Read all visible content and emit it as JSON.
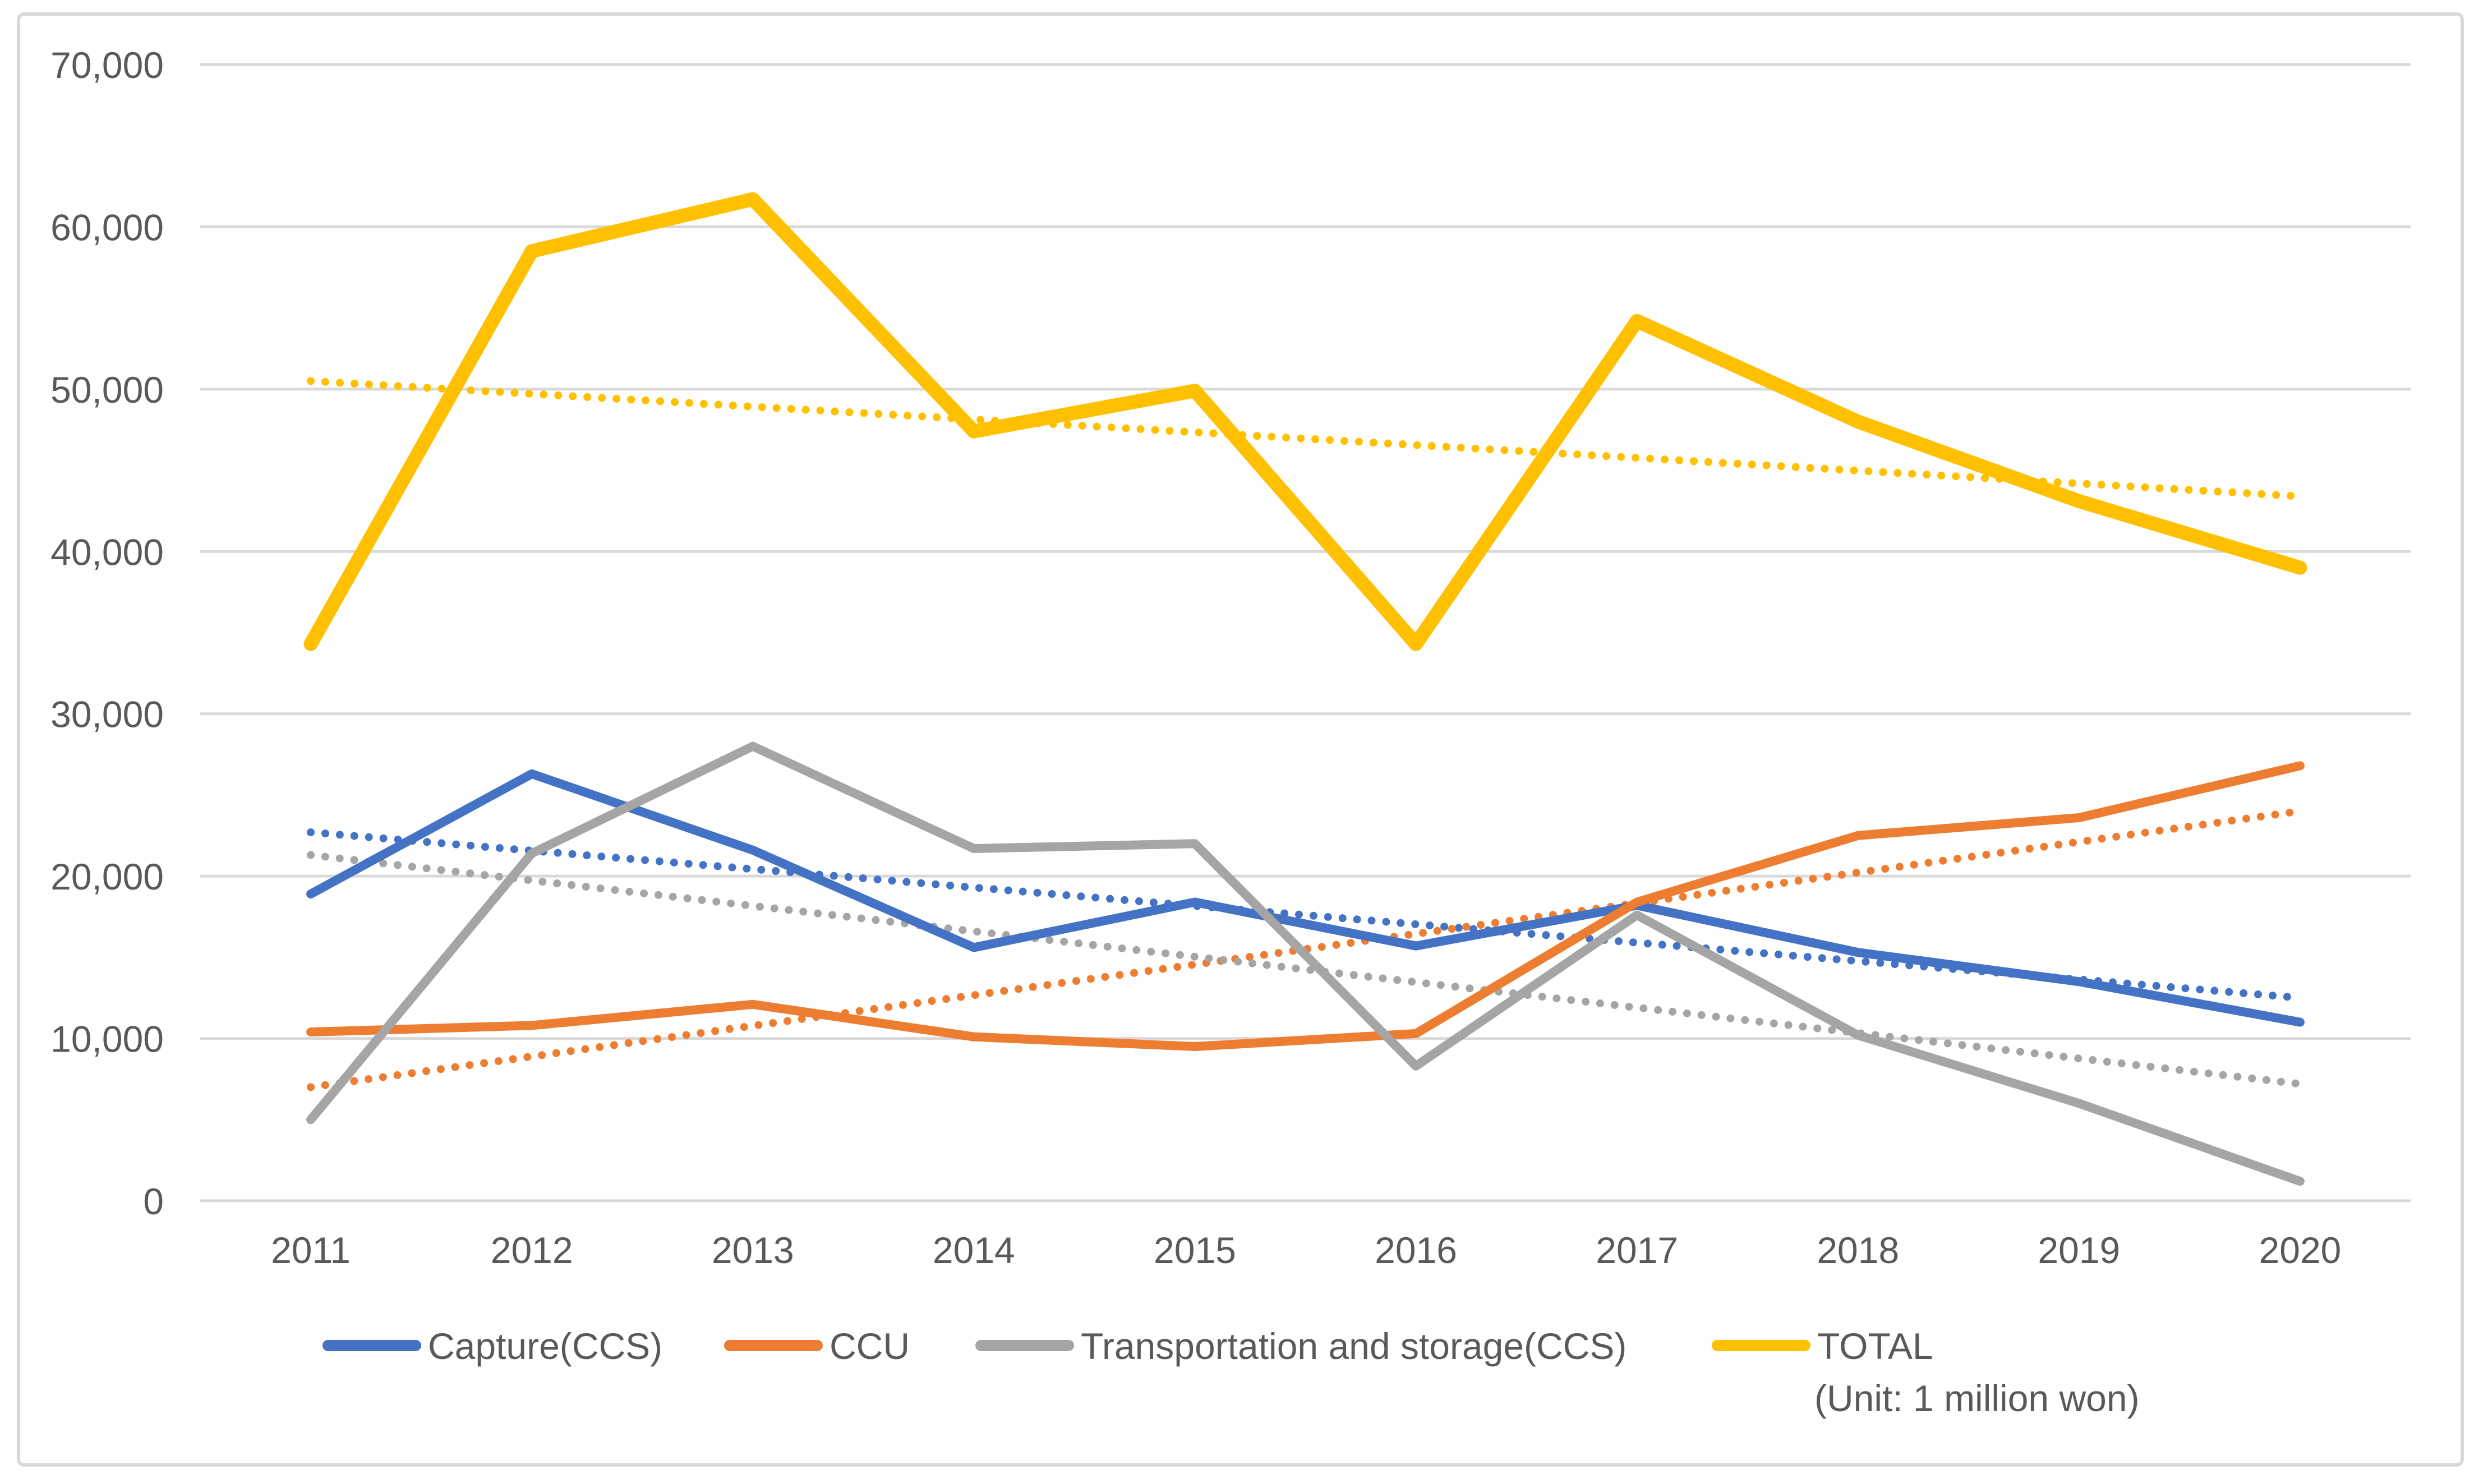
{
  "chart_data": {
    "type": "line",
    "title": "",
    "unit_note": "(Unit: 1 million won)",
    "x": {
      "label": "",
      "categories": [
        "2011",
        "2012",
        "2013",
        "2014",
        "2015",
        "2016",
        "2017",
        "2018",
        "2019",
        "2020"
      ]
    },
    "y": {
      "label": "",
      "min": 0,
      "max": 70000,
      "tick_step": 10000,
      "tick_labels": [
        "0",
        "10,000",
        "20,000",
        "30,000",
        "40,000",
        "50,000",
        "60,000",
        "70,000"
      ],
      "gridlines": true
    },
    "legend": {
      "position": "bottom",
      "entries": [
        "Capture(CCS)",
        "CCU",
        "Transportation and storage(CCS)",
        "TOTAL"
      ]
    },
    "series": [
      {
        "name": "Capture(CCS)",
        "color": "#4472C4",
        "values": [
          18900,
          26300,
          21600,
          15600,
          18400,
          15700,
          18200,
          15300,
          13500,
          11000
        ],
        "trendline": {
          "type": "linear",
          "start": 22700,
          "end": 12500
        }
      },
      {
        "name": "CCU",
        "color": "#ED7D31",
        "values": [
          10400,
          10800,
          12100,
          10100,
          9500,
          10300,
          18400,
          22500,
          23600,
          26800
        ],
        "trendline": {
          "type": "linear",
          "start": 7000,
          "end": 24000
        }
      },
      {
        "name": "Transportation and storage(CCS)",
        "color": "#A5A5A5",
        "values": [
          5000,
          21400,
          28000,
          21700,
          22000,
          8300,
          17600,
          10200,
          6000,
          1200
        ],
        "trendline": {
          "type": "linear",
          "start": 21300,
          "end": 7200
        }
      },
      {
        "name": "TOTAL",
        "color": "#FFC000",
        "values": [
          34300,
          58500,
          61700,
          47400,
          49900,
          34300,
          54200,
          48000,
          43100,
          39000
        ],
        "trendline": {
          "type": "linear",
          "start": 50500,
          "end": 43400
        }
      }
    ],
    "colors": {
      "grid": "#D9D9D9",
      "border": "#D9D9D9",
      "text": "#595959",
      "background": "#FFFFFF"
    }
  }
}
